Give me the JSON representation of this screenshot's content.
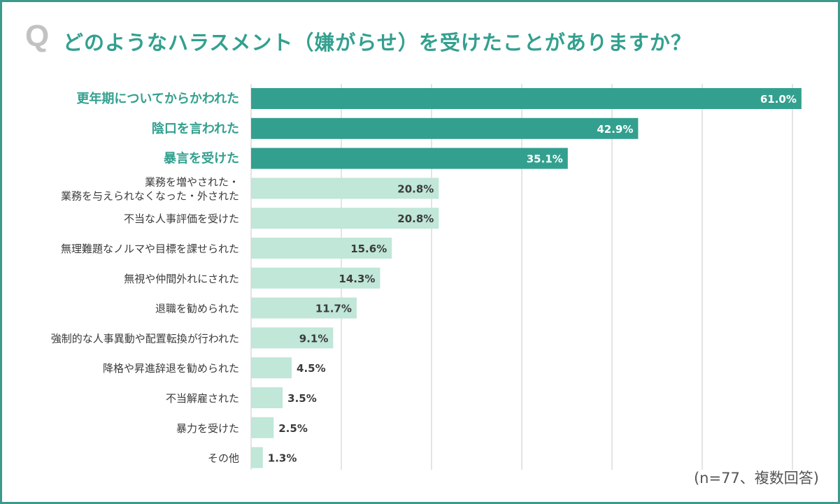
{
  "question_mark": "Q",
  "footnote": "(n=77、複数回答)",
  "colors": {
    "frame": "#3b9a8a",
    "title": "#33a08f",
    "bar_dark": "#33a08f",
    "bar_light": "#c0e7d8",
    "label_dark": "#3b3b3b",
    "gridline": "#dcdcdc"
  },
  "chart_data": {
    "type": "bar",
    "orientation": "horizontal",
    "title": "どのようなハラスメント（嫌がらせ）を受けたことがありますか？",
    "categories": [
      [
        "更年期についてからかわれた"
      ],
      [
        "陰口を言われた"
      ],
      [
        "暴言を受けた"
      ],
      [
        "業務を増やされた・",
        "業務を与えられなくなった・外された"
      ],
      [
        "不当な人事評価を受けた"
      ],
      [
        "無理難題なノルマや目標を課せられた"
      ],
      [
        "無視や仲間外れにされた"
      ],
      [
        "退職を勧められた"
      ],
      [
        "強制的な人事異動や配置転換が行われた"
      ],
      [
        "降格や昇進辞退を勧められた"
      ],
      [
        "不当解雇された"
      ],
      [
        "暴力を受けた"
      ],
      [
        "その他"
      ]
    ],
    "values": [
      61.0,
      42.9,
      35.1,
      20.8,
      20.8,
      15.6,
      14.3,
      11.7,
      9.1,
      4.5,
      3.5,
      2.5,
      1.3
    ],
    "value_labels": [
      "61.0%",
      "42.9%",
      "35.1%",
      "20.8%",
      "20.8%",
      "15.6%",
      "14.3%",
      "11.7%",
      "9.1%",
      "4.5%",
      "3.5%",
      "2.5%",
      "1.3%"
    ],
    "highlighted_count": 3,
    "xlim": [
      0,
      60
    ],
    "grid_step": 10,
    "unit": "%"
  }
}
